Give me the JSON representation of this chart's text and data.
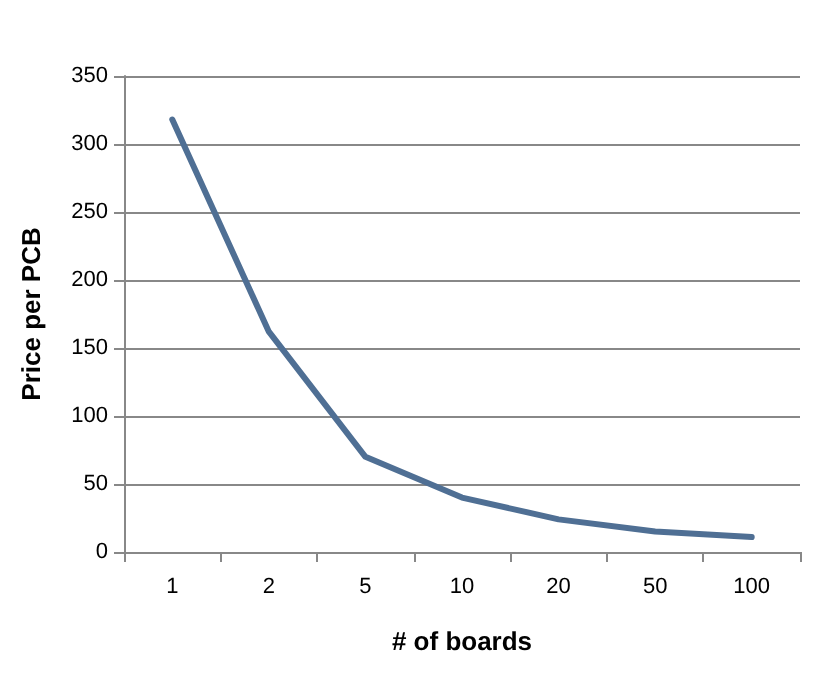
{
  "chart_data": {
    "type": "line",
    "xlabel": "# of boards",
    "ylabel": "Price per PCB",
    "categories": [
      "1",
      "2",
      "5",
      "10",
      "20",
      "50",
      "100"
    ],
    "series": [
      {
        "color": "#4f6f94",
        "values": [
          318,
          162,
          70,
          40,
          24,
          15,
          11
        ]
      }
    ],
    "ylim": [
      0,
      350
    ],
    "yticks": [
      0,
      50,
      100,
      150,
      200,
      250,
      300,
      350
    ],
    "grid": "y",
    "marker": "none",
    "line_style": "solid"
  }
}
